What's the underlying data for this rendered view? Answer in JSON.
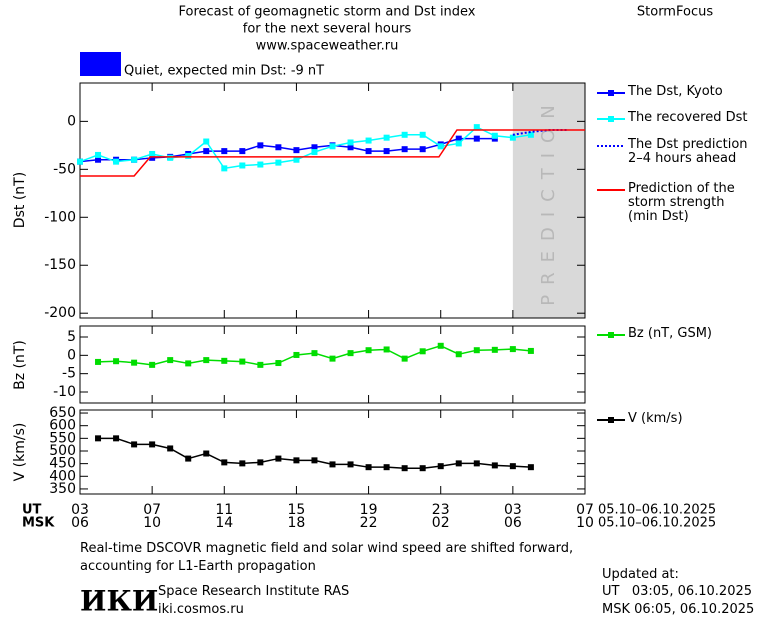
{
  "header": {
    "title_lines": [
      "Forecast of geomagnetic storm and Dst index",
      "for the next several hours",
      "www.spaceweather.ru"
    ],
    "brand": "StormFocus"
  },
  "status": {
    "text": "Quiet, expected min Dst: -9 nT",
    "color": "#0000ff"
  },
  "chart_data": [
    {
      "type": "line",
      "ylabel": "Dst (nT)",
      "xlim": [
        0,
        28
      ],
      "xticks": [
        0,
        4,
        8,
        12,
        16,
        20,
        24,
        28
      ],
      "ylim": [
        -205,
        40
      ],
      "yticks": [
        0,
        -50,
        -100,
        -150,
        -200
      ],
      "prediction_region": {
        "x": [
          24,
          28
        ],
        "label": "PREDICTION",
        "color": "#d9d9d9"
      },
      "series": [
        {
          "name": "The Dst, Kyoto",
          "color": "#0000ff",
          "marker": true,
          "dash": false,
          "x": [
            0,
            1,
            2,
            3,
            4,
            5,
            6,
            7,
            8,
            9,
            10,
            11,
            12,
            13,
            14,
            15,
            16,
            17,
            18,
            19,
            20,
            21,
            22,
            23
          ],
          "values": [
            -42,
            -40,
            -40,
            -40,
            -38,
            -37,
            -34,
            -31,
            -31,
            -31,
            -25,
            -27,
            -30,
            -27,
            -25,
            -27,
            -31,
            -31,
            -29,
            -29,
            -24,
            -18,
            -18,
            -18
          ]
        },
        {
          "name": "The recovered Dst",
          "color": "#00ffff",
          "marker": true,
          "dash": false,
          "x": [
            0,
            1,
            2,
            3,
            4,
            5,
            6,
            7,
            8,
            9,
            10,
            11,
            12,
            13,
            14,
            15,
            16,
            17,
            18,
            19,
            20,
            21,
            22,
            23,
            24,
            25
          ],
          "values": [
            -42,
            -35,
            -42,
            -40,
            -34,
            -38,
            -36,
            -21,
            -49,
            -46,
            -45,
            -43,
            -40,
            -32,
            -26,
            -22,
            -20,
            -17,
            -14,
            -14,
            -26,
            -23,
            -6,
            -15,
            -17,
            -14
          ]
        },
        {
          "name": "The Dst prediction 2–4 hours ahead",
          "color": "#0000ff",
          "marker": false,
          "dash": true,
          "x": [
            24,
            25,
            26,
            27
          ],
          "values": [
            -14,
            -11,
            -9,
            -9
          ]
        },
        {
          "name": "Prediction of the storm strength (min Dst)",
          "color": "#ff0000",
          "marker": false,
          "dash": false,
          "x": [
            0,
            3,
            3.9,
            19.9,
            20.9,
            28
          ],
          "values": [
            -57,
            -57,
            -37,
            -37,
            -9,
            -9
          ]
        }
      ]
    },
    {
      "type": "line",
      "ylabel": "Bz (nT)",
      "xlim": [
        0,
        28
      ],
      "xticks": [
        0,
        4,
        8,
        12,
        16,
        20,
        24,
        28
      ],
      "ylim": [
        -13,
        8
      ],
      "yticks": [
        5,
        0,
        -5,
        -10
      ],
      "series": [
        {
          "name": "Bz (nT, GSM)",
          "color": "#00dd00",
          "marker": true,
          "dash": false,
          "x": [
            1,
            2,
            3,
            4,
            5,
            6,
            7,
            8,
            9,
            10,
            11,
            12,
            13,
            14,
            15,
            16,
            17,
            18,
            19,
            20,
            21,
            22,
            23,
            24,
            25
          ],
          "values": [
            -1.8,
            -1.6,
            -2.0,
            -2.6,
            -1.3,
            -2.2,
            -1.3,
            -1.5,
            -1.7,
            -2.6,
            -2.1,
            0.1,
            0.6,
            -0.9,
            0.6,
            1.4,
            1.6,
            -0.9,
            1.1,
            2.6,
            0.3,
            1.4,
            1.5,
            1.7,
            1.2
          ]
        }
      ]
    },
    {
      "type": "line",
      "ylabel": "V (km/s)",
      "xlim": [
        0,
        28
      ],
      "xticks": [
        {
          "value": 0,
          "label": "03"
        },
        {
          "value": 4,
          "label": "07"
        },
        {
          "value": 8,
          "label": "11"
        },
        {
          "value": 12,
          "label": "15"
        },
        {
          "value": 16,
          "label": "19"
        },
        {
          "value": 20,
          "label": "23"
        },
        {
          "value": 24,
          "label": "03"
        },
        {
          "value": 28,
          "label": "07"
        }
      ],
      "xticks_msk": [
        {
          "value": 0,
          "label": "06"
        },
        {
          "value": 4,
          "label": "10"
        },
        {
          "value": 8,
          "label": "14"
        },
        {
          "value": 12,
          "label": "18"
        },
        {
          "value": 16,
          "label": "22"
        },
        {
          "value": 20,
          "label": "02"
        },
        {
          "value": 24,
          "label": "06"
        },
        {
          "value": 28,
          "label": "10"
        }
      ],
      "ut_label": "UT",
      "msk_label": "MSK",
      "ut_dates": "05.10–06.10.2025",
      "msk_dates": "05.10–06.10.2025",
      "ylim": [
        330,
        662
      ],
      "yticks": [
        350,
        400,
        450,
        500,
        550,
        600,
        650
      ],
      "series": [
        {
          "name": "V (km/s)",
          "color": "#000000",
          "marker": true,
          "dash": false,
          "x": [
            1,
            2,
            3,
            4,
            5,
            6,
            7,
            8,
            9,
            10,
            11,
            12,
            13,
            14,
            15,
            16,
            17,
            18,
            19,
            20,
            21,
            22,
            23,
            24,
            25
          ],
          "values": [
            550,
            550,
            526,
            526,
            510,
            470,
            490,
            455,
            451,
            455,
            470,
            463,
            463,
            447,
            447,
            436,
            436,
            432,
            432,
            440,
            451,
            451,
            443,
            440,
            436
          ]
        }
      ]
    }
  ],
  "footer": {
    "note": "Real-time DSCOVR magnetic field and solar wind speed are shifted forward, accounting for L1-Earth propagation",
    "logo": "ИКИ",
    "institute": "Space Research Institute RAS",
    "site": "iki.cosmos.ru",
    "updated_title": "Updated at:",
    "updated_ut": "UT   03:05, 06.10.2025",
    "updated_msk": "MSK 06:05, 06.10.2025"
  }
}
